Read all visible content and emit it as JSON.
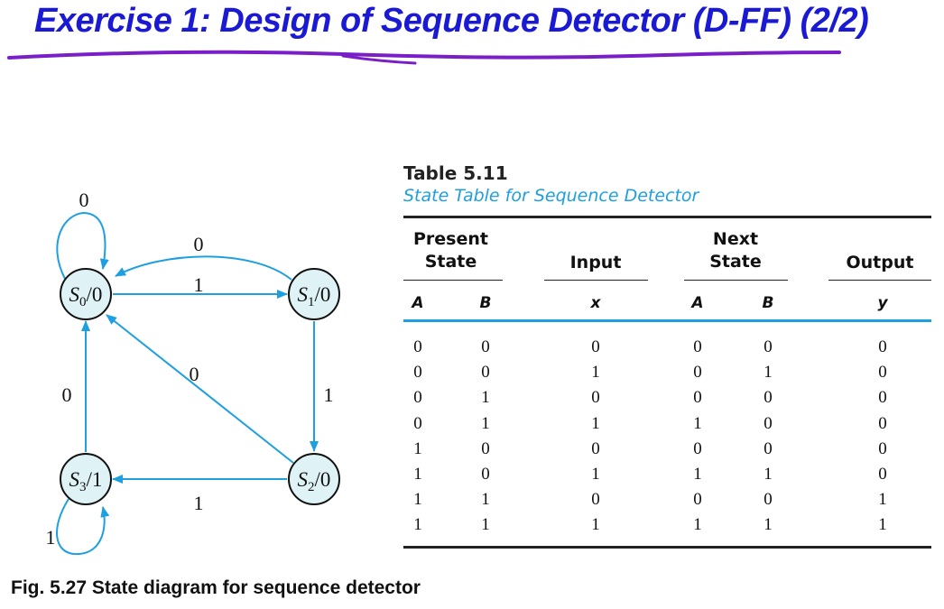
{
  "slide": {
    "title": "Exercise  1: Design of Sequence Detector (D-FF) (2/2)"
  },
  "diagram": {
    "states": [
      {
        "id": "S0",
        "name": "S",
        "sub": "0",
        "out": "/0"
      },
      {
        "id": "S1",
        "name": "S",
        "sub": "1",
        "out": "/0"
      },
      {
        "id": "S2",
        "name": "S",
        "sub": "2",
        "out": "/0"
      },
      {
        "id": "S3",
        "name": "S",
        "sub": "3",
        "out": "/1"
      }
    ],
    "transitions": [
      {
        "from": "S0",
        "to": "S0",
        "label": "0"
      },
      {
        "from": "S0",
        "to": "S1",
        "label": "1"
      },
      {
        "from": "S1",
        "to": "S0",
        "label": "0"
      },
      {
        "from": "S1",
        "to": "S2",
        "label": "1"
      },
      {
        "from": "S2",
        "to": "S0",
        "label": "0"
      },
      {
        "from": "S2",
        "to": "S3",
        "label": "1"
      },
      {
        "from": "S3",
        "to": "S0",
        "label": "0"
      },
      {
        "from": "S3",
        "to": "S3",
        "label": "1"
      }
    ],
    "caption": "Fig. 5.27  State diagram for sequence detector",
    "colors": {
      "arrow": "#1e9fe0",
      "node_fill": "#dff3f7",
      "node_stroke": "#111111"
    }
  },
  "table": {
    "title": "Table 5.11",
    "subtitle": "State Table for Sequence Detector",
    "headers": {
      "present_state": "Present\nState",
      "input": "Input",
      "next_state": "Next\nState",
      "output": "Output"
    },
    "subheaders": [
      "A",
      "B",
      "x",
      "A",
      "B",
      "y"
    ],
    "rows": [
      [
        "0",
        "0",
        "0",
        "0",
        "0",
        "0"
      ],
      [
        "0",
        "0",
        "1",
        "0",
        "1",
        "0"
      ],
      [
        "0",
        "1",
        "0",
        "0",
        "0",
        "0"
      ],
      [
        "0",
        "1",
        "1",
        "1",
        "0",
        "0"
      ],
      [
        "1",
        "0",
        "0",
        "0",
        "0",
        "0"
      ],
      [
        "1",
        "0",
        "1",
        "1",
        "1",
        "0"
      ],
      [
        "1",
        "1",
        "0",
        "0",
        "0",
        "1"
      ],
      [
        "1",
        "1",
        "1",
        "1",
        "1",
        "1"
      ]
    ],
    "colors": {
      "accent": "#1e9fe0",
      "rule": "#222222"
    }
  }
}
